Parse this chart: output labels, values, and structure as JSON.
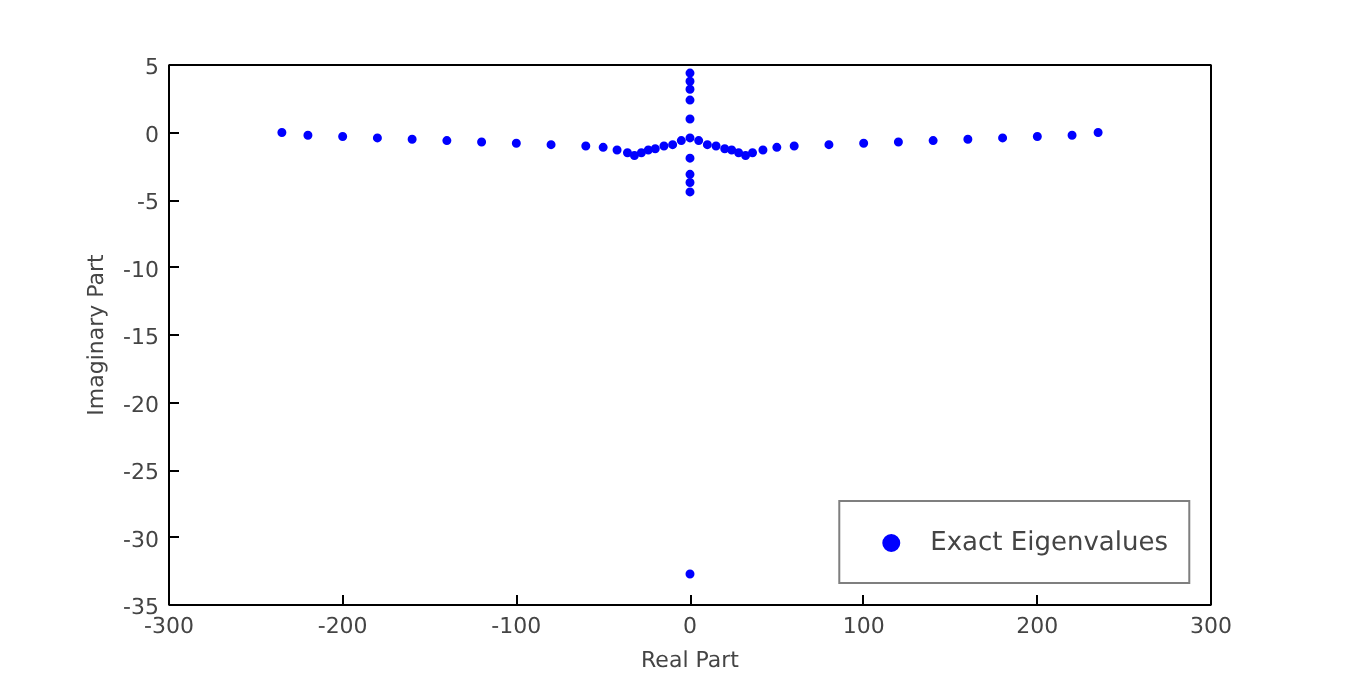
{
  "chart_data": {
    "type": "scatter",
    "xlabel": "Real Part",
    "ylabel": "Imaginary Part",
    "xlim": [
      -300,
      300
    ],
    "xticks": [
      -300,
      -200,
      -100,
      0,
      100,
      200,
      300
    ],
    "ylim": [
      -35,
      5
    ],
    "yticks": [
      -35,
      -30,
      -25,
      -20,
      -15,
      -10,
      -5,
      0,
      5
    ],
    "grid": false,
    "legend": "bottom right",
    "marker": "circle",
    "series": [
      {
        "name": "Exact Eigenvalues",
        "color": "#0000ff",
        "x": [
          -235,
          -220,
          -200,
          -180,
          -160,
          -140,
          -120,
          -100,
          -80,
          -60,
          -50,
          -42,
          -36,
          -32,
          -28,
          -24,
          -20,
          -15,
          -10,
          -5,
          0,
          5,
          10,
          15,
          20,
          24,
          28,
          32,
          36,
          42,
          50,
          60,
          80,
          100,
          120,
          140,
          160,
          180,
          200,
          220,
          235,
          0,
          0,
          0,
          0,
          0,
          0,
          0,
          0,
          0,
          0
        ],
        "values": [
          0,
          -0.2,
          -0.3,
          -0.4,
          -0.5,
          -0.6,
          -0.7,
          -0.8,
          -0.9,
          -1.0,
          -1.1,
          -1.3,
          -1.5,
          -1.7,
          -1.5,
          -1.3,
          -1.2,
          -1.0,
          -0.9,
          -0.6,
          -0.4,
          -0.6,
          -0.9,
          -1.0,
          -1.2,
          -1.3,
          -1.5,
          -1.7,
          -1.5,
          -1.3,
          -1.1,
          -1.0,
          -0.9,
          -0.8,
          -0.7,
          -0.6,
          -0.5,
          -0.4,
          -0.3,
          -0.2,
          0,
          4.4,
          3.8,
          3.2,
          2.4,
          1.0,
          -1.9,
          -3.1,
          -3.7,
          -4.4,
          -32.7
        ]
      }
    ]
  }
}
